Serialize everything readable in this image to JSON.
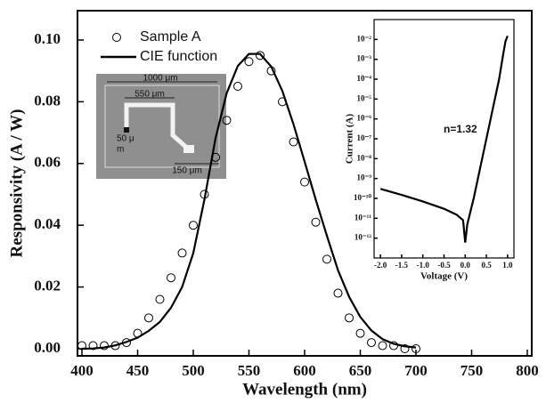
{
  "chart_data": [
    {
      "type": "line",
      "xlabel": "Wavelength (nm)",
      "ylabel": "Responsivity (A / W)",
      "xlim": [
        396,
        804
      ],
      "ylim": [
        -0.0023,
        0.1095
      ],
      "xticks": [
        400,
        450,
        500,
        550,
        600,
        650,
        700,
        750,
        800
      ],
      "yticks": [
        {
          "value": 0,
          "label": "0.00"
        },
        0.02,
        0.04,
        0.06,
        0.08,
        {
          "value": 0.1,
          "label": "0.10"
        }
      ],
      "legend": "upper left",
      "x": [
        400,
        410,
        420,
        430,
        440,
        450,
        460,
        470,
        480,
        490,
        500,
        510,
        520,
        530,
        540,
        550,
        560,
        570,
        580,
        590,
        600,
        610,
        620,
        630,
        640,
        650,
        660,
        670,
        680,
        690,
        700
      ],
      "series": [
        {
          "name": "Sample A",
          "color": "#000000",
          "marker": "o",
          "values": [
            0.001,
            0.001,
            0.001,
            0.001,
            0.002,
            0.005,
            0.01,
            0.016,
            0.023,
            0.031,
            0.04,
            0.05,
            0.062,
            0.074,
            0.085,
            0.093,
            0.095,
            0.09,
            0.08,
            0.067,
            0.054,
            0.041,
            0.029,
            0.018,
            0.01,
            0.005,
            0.002,
            0.001,
            0.001,
            0,
            0
          ]
        },
        {
          "name": "CIE function",
          "color": "#000000",
          "marker": "none",
          "values": [
            0,
            0.0001,
            0.0004,
            0.0011,
            0.0022,
            0.0036,
            0.0058,
            0.0087,
            0.0133,
            0.02,
            0.031,
            0.0483,
            0.0682,
            0.0828,
            0.0916,
            0.0955,
            0.0955,
            0.0914,
            0.0835,
            0.0727,
            0.0606,
            0.0483,
            0.0366,
            0.0254,
            0.0168,
            0.0103,
            0.0059,
            0.0031,
            0.0016,
            0.0008,
            0.0004
          ]
        }
      ]
    },
    {
      "type": "line",
      "xlabel": "Voltage (V)",
      "ylabel": "Current (A)",
      "yscale": "log",
      "xlim": [
        -2.15,
        1.15
      ],
      "ylim": [
        1e-13,
        0.1
      ],
      "xticks": [
        {
          "value": -2,
          "label": "-2.0"
        },
        -1.5,
        {
          "value": -1,
          "label": "-1.0"
        },
        -0.5,
        {
          "value": 0,
          "label": "0.0"
        },
        0.5,
        {
          "value": 1,
          "label": "1.0"
        }
      ],
      "yticks": [
        {
          "value": 1e-12,
          "label": "10⁻¹²"
        },
        {
          "value": 1e-11,
          "label": "10⁻¹¹"
        },
        {
          "value": 1e-10,
          "label": "10⁻¹⁰"
        },
        {
          "value": 1e-09,
          "label": "10⁻⁹"
        },
        {
          "value": 1e-08,
          "label": "10⁻⁸"
        },
        {
          "value": 1e-07,
          "label": "10⁻⁷"
        },
        {
          "value": 1e-06,
          "label": "10⁻⁶"
        },
        {
          "value": 1e-05,
          "label": "10⁻⁵"
        },
        {
          "value": 0.0001,
          "label": "10⁻⁴"
        },
        {
          "value": 0.001,
          "label": "10⁻³"
        },
        {
          "value": 0.01,
          "label": "10⁻²"
        }
      ],
      "annotations": [
        "n=1.32"
      ],
      "x": [
        -2.0,
        -1.5,
        -1.0,
        -0.5,
        -0.2,
        -0.05,
        0,
        0.05,
        0.2,
        0.4,
        0.6,
        0.8,
        0.9,
        0.95,
        1.0
      ],
      "series": [
        {
          "color": "#000000",
          "marker": "none",
          "values": [
            3e-10,
            1.5e-10,
            7e-11,
            3e-11,
            1.5e-11,
            8e-12,
            6e-13,
            5e-12,
            1e-10,
            1e-08,
            1e-06,
            0.0001,
            0.002,
            0.008,
            0.015
          ]
        }
      ]
    }
  ],
  "photo": {
    "labels": [
      "1000 μm",
      "550 μm",
      "50 μ",
      "m",
      "150 μm"
    ]
  }
}
